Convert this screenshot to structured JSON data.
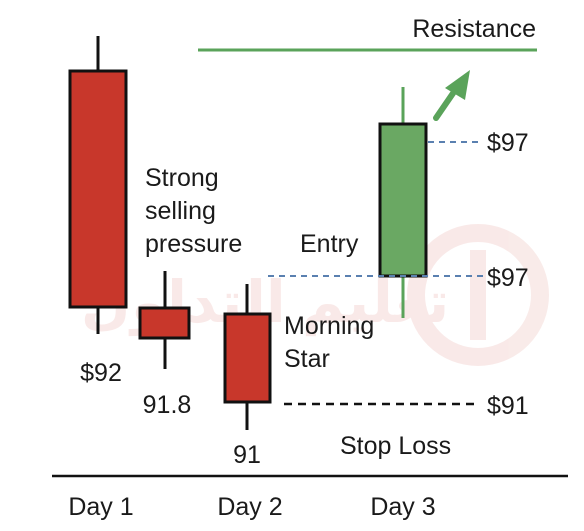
{
  "chart_data": {
    "type": "candlestick",
    "title": "",
    "categories": [
      "Day 1",
      "Day 2",
      "Day 3"
    ],
    "colors": {
      "bearish": "#c8372b",
      "bullish": "#6aa863",
      "stroke": "#111111",
      "resistance": "#5aa35a",
      "dashed_blue": "#5a80b0",
      "dashed_black": "#111111",
      "arrow": "#5aa35a",
      "watermark": "#c8372b"
    },
    "candles": [
      {
        "id": "day1-big",
        "day": "Day 1",
        "direction": "bearish",
        "label": "$92",
        "note": [
          "Strong",
          "selling",
          "pressure"
        ]
      },
      {
        "id": "day1-small",
        "day": "Day 1",
        "direction": "bearish",
        "label": "91.8",
        "note": []
      },
      {
        "id": "day2",
        "day": "Day 2",
        "direction": "bearish",
        "label": "91",
        "note": [
          "Morning",
          "Star"
        ]
      },
      {
        "id": "day3",
        "day": "Day 3",
        "direction": "bullish",
        "label": "",
        "note": []
      }
    ],
    "levels": [
      {
        "id": "resistance",
        "label": "Resistance"
      },
      {
        "id": "day3-top",
        "label": "$97"
      },
      {
        "id": "entry",
        "label": "$97",
        "note": "Entry"
      },
      {
        "id": "stop-loss",
        "label": "$91",
        "note": "Stop Loss"
      }
    ],
    "pattern_name": [
      "Morning",
      "Star"
    ],
    "watermark_text": "تعليم التداول"
  }
}
